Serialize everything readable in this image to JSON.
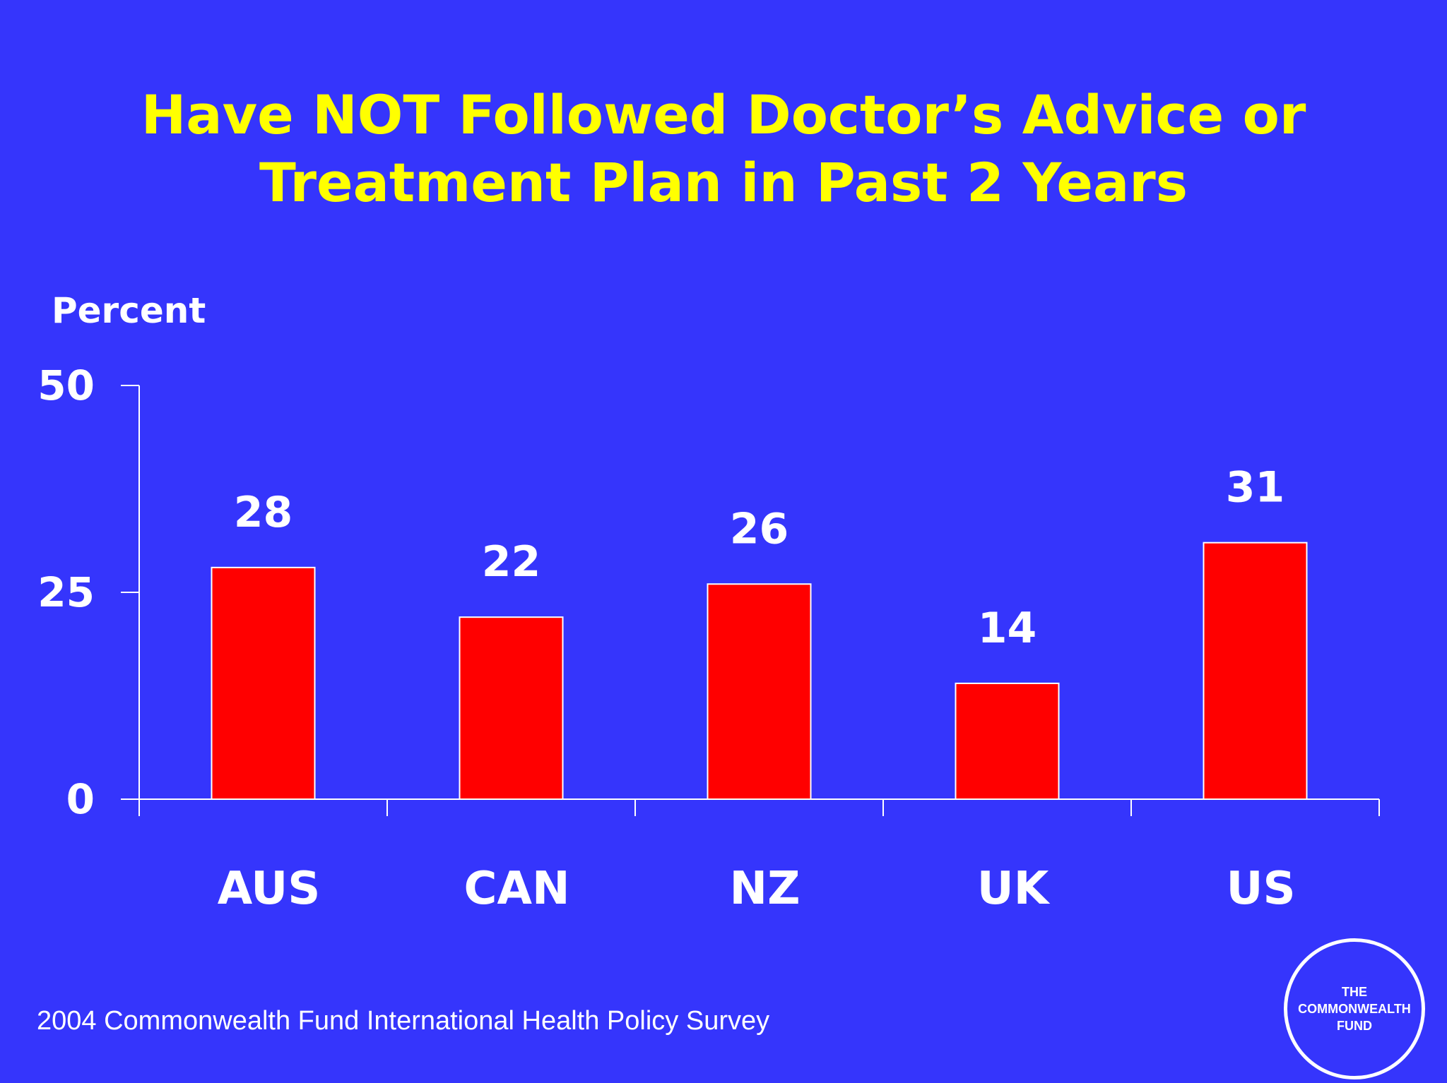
{
  "slide": {
    "title_line1": "Have NOT Followed Doctor’s Advice or",
    "title_line2": "Treatment Plan in Past 2 Years",
    "footer": "2004 Commonwealth Fund International Health Policy Survey",
    "logo_line1": "THE",
    "logo_line2": "COMMONWEALTH",
    "logo_line3": "FUND"
  },
  "colors": {
    "background": "#3535fc",
    "title": "#ffff00",
    "bar": "#ff0000",
    "text": "#ffffff"
  },
  "chart_data": {
    "type": "bar",
    "title": "Have NOT Followed Doctor’s Advice or Treatment Plan in Past 2 Years",
    "ylabel": "Percent",
    "xlabel": "",
    "categories": [
      "AUS",
      "CAN",
      "NZ",
      "UK",
      "US"
    ],
    "values": [
      28,
      22,
      26,
      14,
      31
    ],
    "data_labels": [
      "28",
      "22",
      "26",
      "14",
      "31"
    ],
    "ylim": [
      0,
      50
    ],
    "yticks": [
      0,
      25,
      50
    ],
    "ytick_labels": [
      "0",
      "25",
      "50"
    ],
    "grid": false,
    "legend": "none"
  }
}
